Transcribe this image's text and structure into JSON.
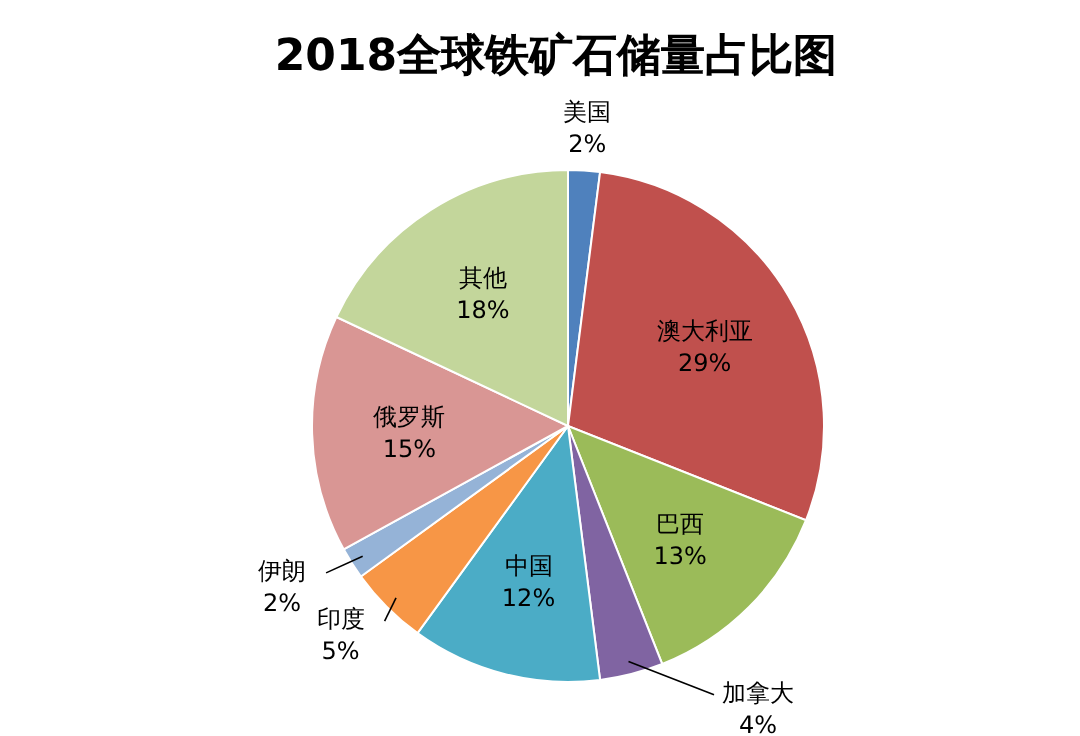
{
  "chart_data": {
    "type": "pie",
    "title": "2018全球铁矿石储量占比图",
    "categories": [
      "美国",
      "澳大利亚",
      "巴西",
      "加拿大",
      "中国",
      "印度",
      "伊朗",
      "俄罗斯",
      "其他"
    ],
    "values": [
      2,
      29,
      13,
      4,
      12,
      5,
      2,
      15,
      18
    ],
    "value_labels": [
      "2%",
      "29%",
      "13%",
      "4%",
      "12%",
      "5%",
      "2%",
      "15%",
      "18%"
    ],
    "colors": [
      "#4f81bd",
      "#c0504d",
      "#9bbb59",
      "#8064a2",
      "#4bacc6",
      "#f79646",
      "#95b3d7",
      "#d99694",
      "#c3d69b"
    ]
  }
}
